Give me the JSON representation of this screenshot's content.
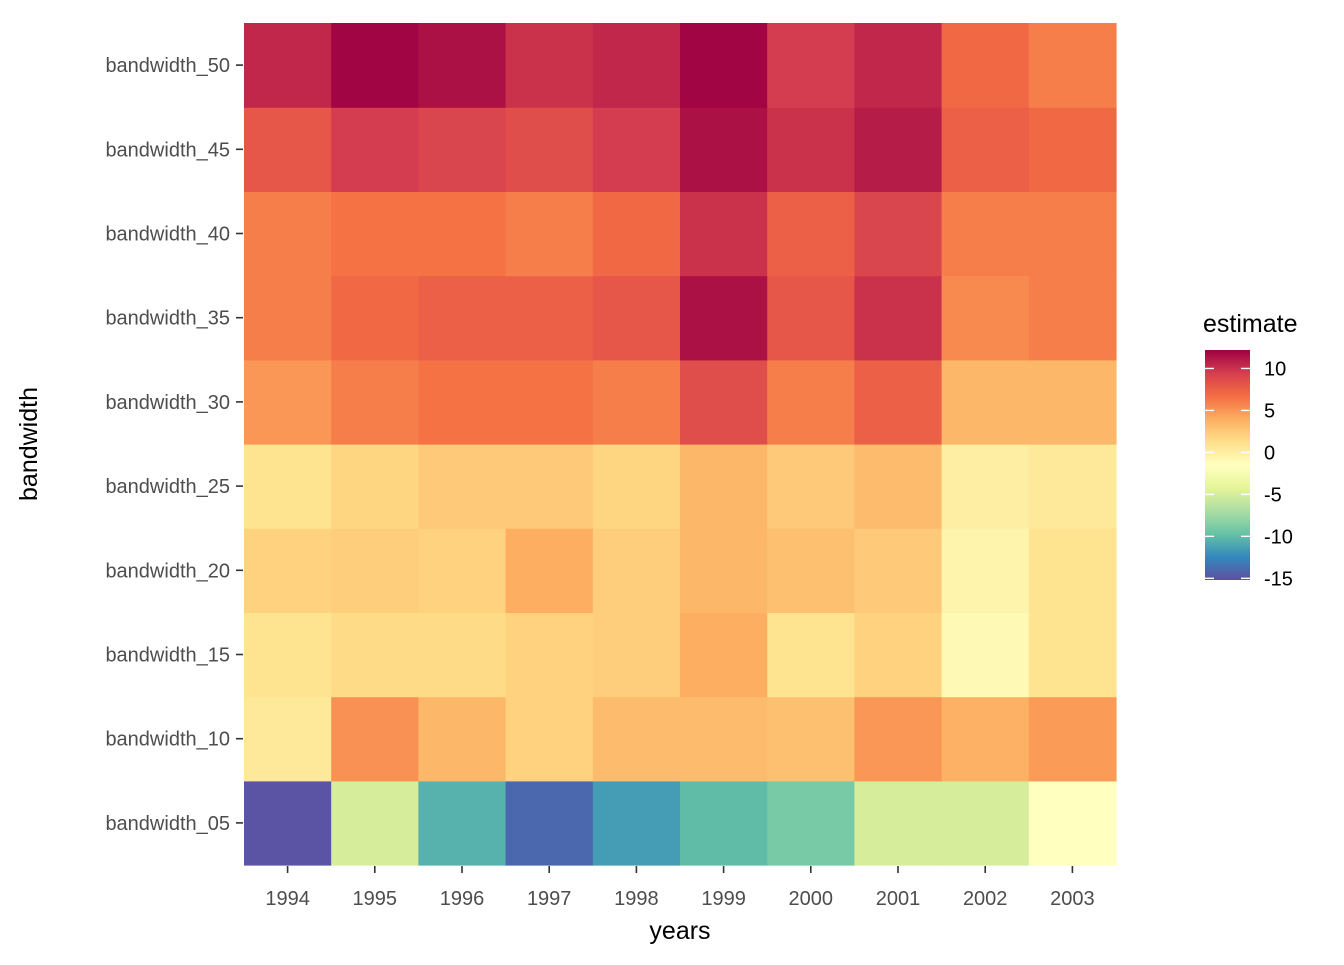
{
  "chart_data": {
    "type": "heatmap",
    "xlabel": "years",
    "ylabel": "bandwidth",
    "x_categories": [
      "1994",
      "1995",
      "1996",
      "1997",
      "1998",
      "1999",
      "2000",
      "2001",
      "2002",
      "2003"
    ],
    "y_categories": [
      "bandwidth_05",
      "bandwidth_10",
      "bandwidth_15",
      "bandwidth_20",
      "bandwidth_25",
      "bandwidth_30",
      "bandwidth_35",
      "bandwidth_40",
      "bandwidth_45",
      "bandwidth_50"
    ],
    "values": [
      [
        -15.0,
        -5.0,
        -10.5,
        -14.0,
        -11.5,
        -10.0,
        -9.0,
        -5.0,
        -5.0,
        -1.5
      ],
      [
        0.5,
        5.2,
        3.5,
        2.0,
        3.2,
        3.2,
        3.0,
        5.0,
        3.8,
        4.8
      ],
      [
        1.0,
        1.5,
        1.5,
        2.0,
        2.2,
        4.0,
        1.0,
        2.0,
        -1.0,
        1.0
      ],
      [
        2.0,
        2.2,
        2.0,
        4.0,
        2.2,
        3.5,
        3.0,
        2.5,
        -0.5,
        1.0
      ],
      [
        1.0,
        1.8,
        2.5,
        2.5,
        1.8,
        3.5,
        2.5,
        3.2,
        0.0,
        0.5
      ],
      [
        5.0,
        6.0,
        6.5,
        6.5,
        6.0,
        8.5,
        6.0,
        7.5,
        3.5,
        3.5
      ],
      [
        6.0,
        7.0,
        7.5,
        7.5,
        8.0,
        11.5,
        8.0,
        10.0,
        5.5,
        6.0
      ],
      [
        6.0,
        6.5,
        6.5,
        6.0,
        7.0,
        10.0,
        7.5,
        9.0,
        6.0,
        6.0
      ],
      [
        8.0,
        9.5,
        9.0,
        8.5,
        9.5,
        11.5,
        10.0,
        11.0,
        7.5,
        7.0
      ],
      [
        10.5,
        12.0,
        11.5,
        10.0,
        10.5,
        12.0,
        9.5,
        10.5,
        7.0,
        6.0
      ]
    ],
    "legend": {
      "title": "estimate",
      "breaks": [
        10,
        5,
        0,
        -5,
        -10,
        -15
      ],
      "labels": [
        "10",
        "5",
        "0",
        "-5",
        "-10",
        "-15"
      ],
      "range": [
        -15.2,
        12.2
      ],
      "position": "right",
      "palette": "Spectral"
    },
    "grid": false
  }
}
